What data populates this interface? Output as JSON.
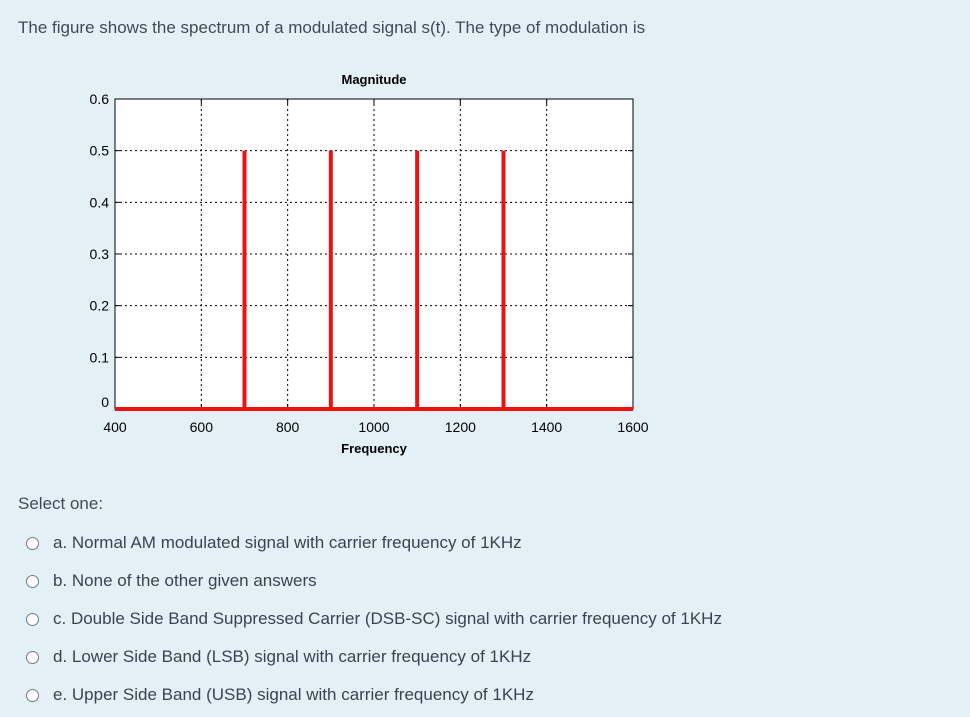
{
  "question": {
    "text": "The figure shows the spectrum of a modulated signal s(t). The type of modulation is"
  },
  "chart_data": {
    "type": "bar",
    "title": "Magnitude",
    "xlabel": "Frequency",
    "ylabel": "",
    "xlim": [
      400,
      1600
    ],
    "ylim": [
      0,
      0.6
    ],
    "x_ticks": [
      "400",
      "600",
      "800",
      "1000",
      "1200",
      "1400",
      "1600"
    ],
    "y_ticks": [
      "0",
      "0.1",
      "0.2",
      "0.3",
      "0.4",
      "0.5",
      "0.6"
    ],
    "grid": true,
    "color": "#ee1111",
    "lines": [
      {
        "x": 700,
        "y": 0.5
      },
      {
        "x": 900,
        "y": 0.5
      },
      {
        "x": 1100,
        "y": 0.5
      },
      {
        "x": 1300,
        "y": 0.5
      }
    ],
    "baseline": {
      "x_start": 400,
      "x_end": 1600,
      "y": 0
    }
  },
  "prompt": {
    "select_one": "Select one:"
  },
  "options": [
    {
      "label": "a. Normal AM modulated signal with carrier frequency of 1KHz"
    },
    {
      "label": "b. None of the other given answers"
    },
    {
      "label": "c. Double Side Band Suppressed Carrier (DSB-SC) signal with carrier frequency of 1KHz"
    },
    {
      "label": "d. Lower Side Band (LSB) signal with carrier frequency of 1KHz"
    },
    {
      "label": "e. Upper Side Band (USB) signal with carrier frequency of 1KHz"
    }
  ]
}
